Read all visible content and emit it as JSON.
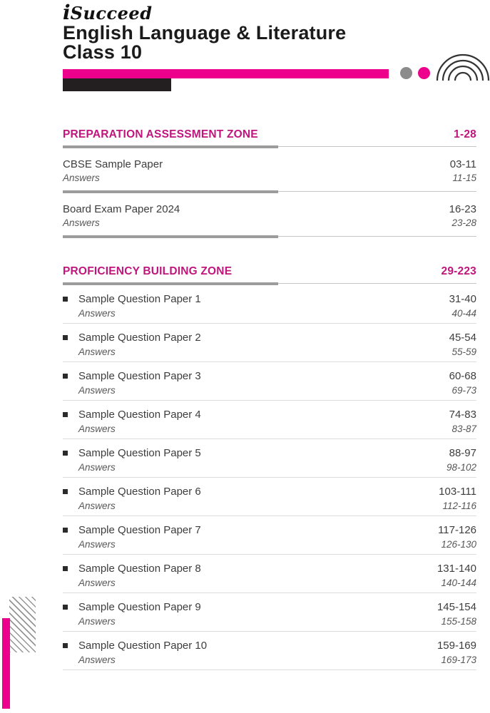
{
  "header": {
    "logo_i": "i",
    "logo_rest": "Succeed",
    "title_line1": "English Language & Literature",
    "title_line2": "Class 10"
  },
  "colors": {
    "magenta": "#ec008c",
    "zone_pink": "#c0157c",
    "black_bar": "#231f20",
    "arc_stroke": "#333333",
    "gray_dot": "#8b8b8b"
  },
  "decor": {
    "icons": [
      "concentric-arcs-icon",
      "gray-dot",
      "pink-dot",
      "hatch-block",
      "pink-side-bar"
    ]
  },
  "toc": {
    "sections": [
      {
        "title": "PREPARATION ASSESSMENT ZONE",
        "pages": "1-28",
        "bulleted": false,
        "entries": [
          {
            "title": "CBSE Sample Paper",
            "pages": "03-11",
            "answers_label": "Answers",
            "answers_pages": "11-15"
          },
          {
            "title": "Board Exam Paper 2024",
            "pages": "16-23",
            "answers_label": "Answers",
            "answers_pages": "23-28"
          }
        ]
      },
      {
        "title": "PROFICIENCY BUILDING ZONE",
        "pages": "29-223",
        "bulleted": true,
        "entries": [
          {
            "title": "Sample Question Paper 1",
            "pages": "31-40",
            "answers_label": "Answers",
            "answers_pages": "40-44"
          },
          {
            "title": "Sample Question Paper 2",
            "pages": "45-54",
            "answers_label": "Answers",
            "answers_pages": "55-59"
          },
          {
            "title": "Sample Question Paper 3",
            "pages": "60-68",
            "answers_label": "Answers",
            "answers_pages": "69-73"
          },
          {
            "title": "Sample Question Paper 4",
            "pages": "74-83",
            "answers_label": "Answers",
            "answers_pages": "83-87"
          },
          {
            "title": "Sample Question Paper 5",
            "pages": "88-97",
            "answers_label": "Answers",
            "answers_pages": "98-102"
          },
          {
            "title": "Sample Question Paper 6",
            "pages": "103-111",
            "answers_label": "Answers",
            "answers_pages": "112-116"
          },
          {
            "title": "Sample Question Paper 7",
            "pages": "117-126",
            "answers_label": "Answers",
            "answers_pages": "126-130"
          },
          {
            "title": "Sample Question Paper 8",
            "pages": "131-140",
            "answers_label": "Answers",
            "answers_pages": "140-144"
          },
          {
            "title": "Sample Question Paper 9",
            "pages": "145-154",
            "answers_label": "Answers",
            "answers_pages": "155-158"
          },
          {
            "title": "Sample Question Paper 10",
            "pages": "159-169",
            "answers_label": "Answers",
            "answers_pages": "169-173"
          }
        ]
      }
    ]
  }
}
